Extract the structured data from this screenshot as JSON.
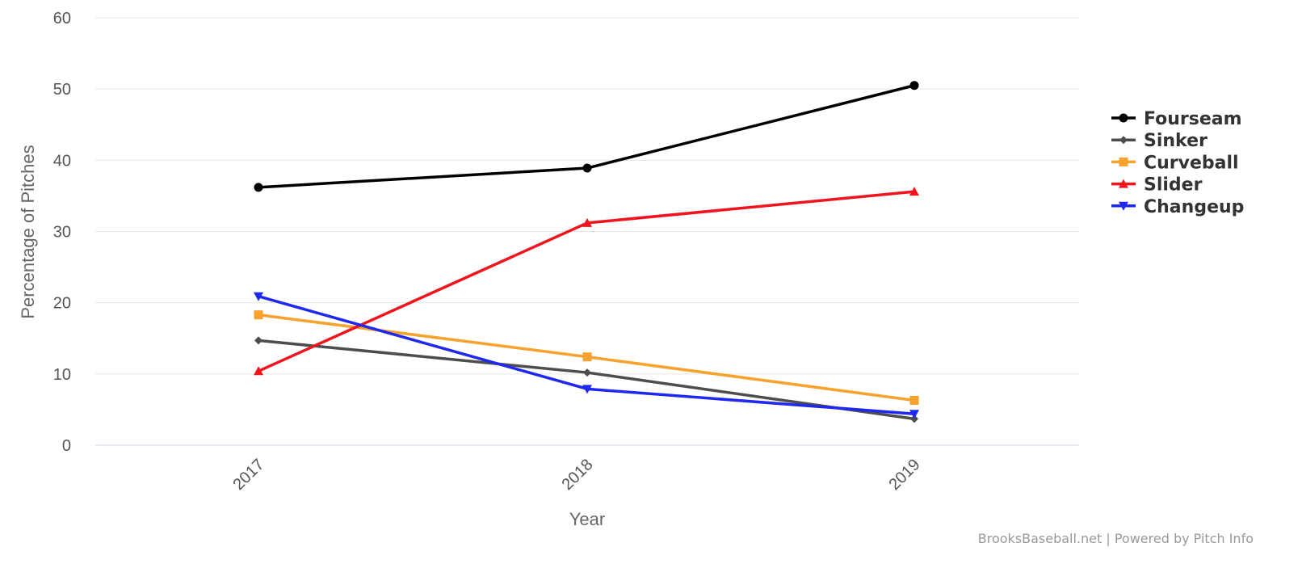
{
  "chart_data": {
    "type": "line",
    "categories": [
      "2017",
      "2018",
      "2019"
    ],
    "xlabel": "Year",
    "ylabel": "Percentage of Pitches",
    "ylim": [
      0,
      60
    ],
    "yticks": [
      0,
      10,
      20,
      30,
      40,
      50,
      60
    ],
    "grid": true,
    "legend_position": "right",
    "series": [
      {
        "name": "Fourseam",
        "color": "#000000",
        "marker": "circle",
        "values": [
          36.2,
          38.9,
          50.5
        ]
      },
      {
        "name": "Sinker",
        "color": "#4d4d4d",
        "marker": "diamond",
        "values": [
          14.7,
          10.2,
          3.7
        ]
      },
      {
        "name": "Curveball",
        "color": "#f7a22f",
        "marker": "square",
        "values": [
          18.3,
          12.4,
          6.3
        ]
      },
      {
        "name": "Slider",
        "color": "#f0141e",
        "marker": "triangle",
        "values": [
          10.4,
          31.2,
          35.6
        ]
      },
      {
        "name": "Changeup",
        "color": "#1e28f0",
        "marker": "triangle-down",
        "values": [
          20.9,
          7.9,
          4.4
        ]
      }
    ]
  },
  "credits": "BrooksBaseball.net | Powered by Pitch Info"
}
